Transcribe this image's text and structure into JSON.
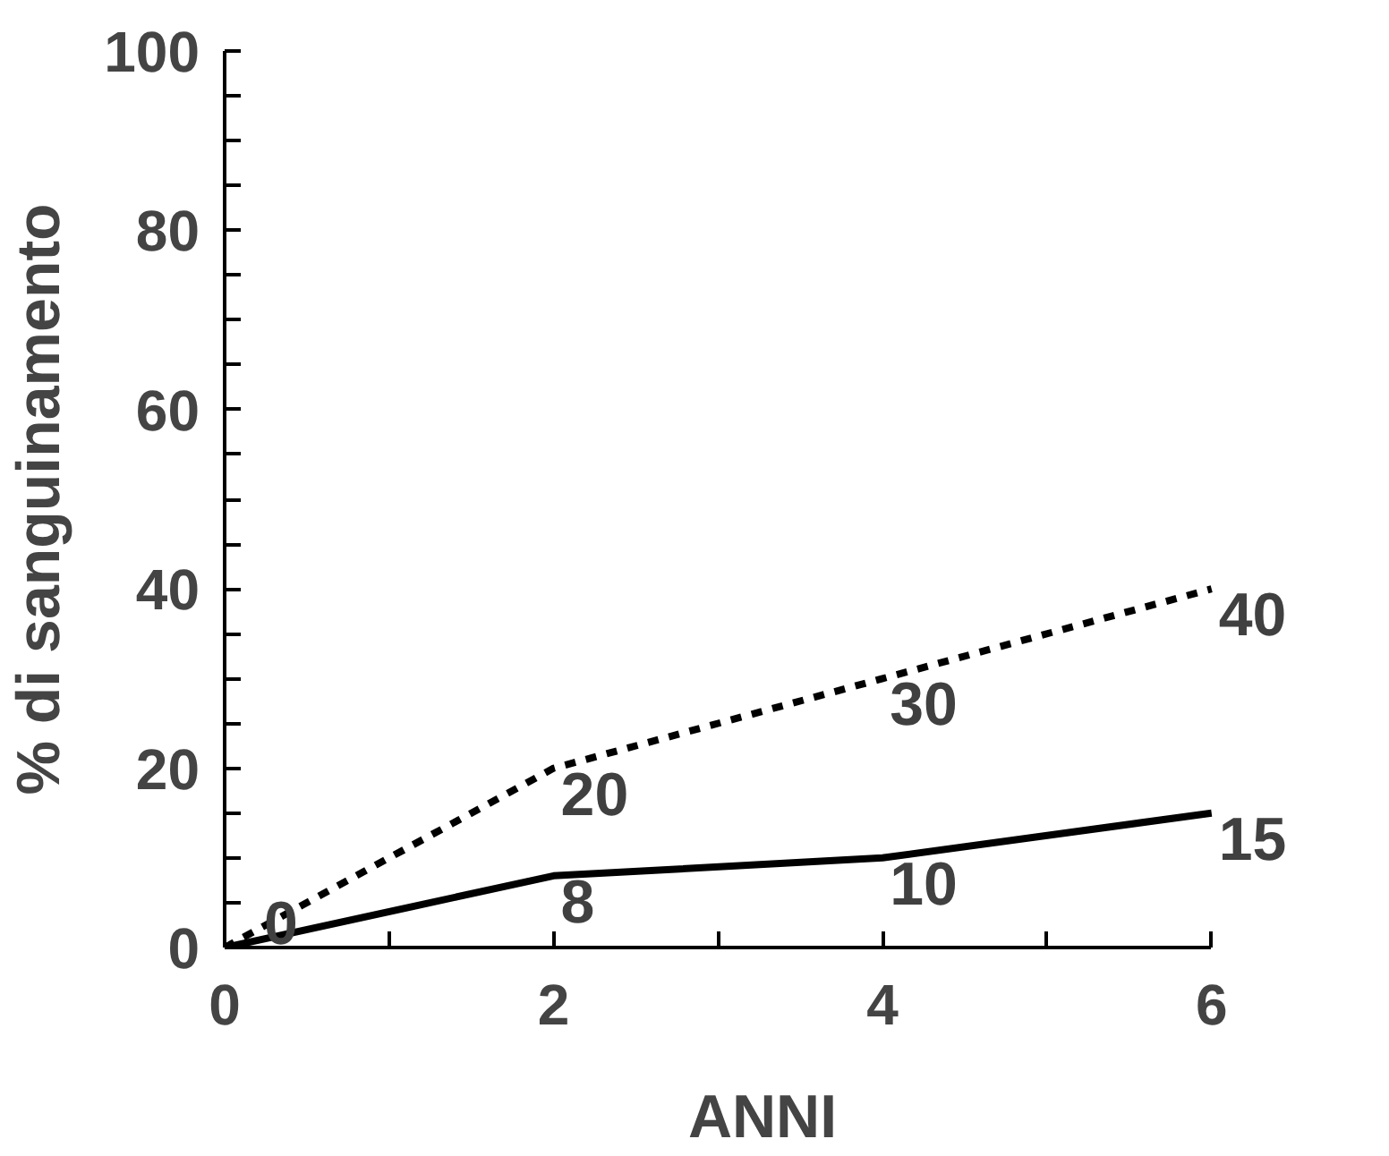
{
  "chart_data": {
    "type": "line",
    "xlabel": "ANNI",
    "ylabel": "% di sanguinamento",
    "x": [
      0,
      2,
      4,
      6
    ],
    "series": [
      {
        "color": "#000000",
        "line_style": "dashed",
        "values": [
          0,
          20,
          30,
          40
        ],
        "value_labels": [
          null,
          "20",
          "30",
          "40"
        ]
      },
      {
        "color": "#000000",
        "line_style": "solid",
        "values": [
          0,
          8,
          10,
          15
        ],
        "value_labels": [
          "0",
          "8",
          "10",
          "15"
        ]
      }
    ],
    "xlim": [
      0,
      6
    ],
    "ylim": [
      0,
      100
    ],
    "xticks": [
      0,
      {
        "value": 1,
        "label": null
      },
      2,
      {
        "value": 3,
        "label": null
      },
      4,
      {
        "value": 5,
        "label": null
      },
      6
    ],
    "yticks": [
      0,
      {
        "value": 5,
        "label": null
      },
      {
        "value": 10,
        "label": null
      },
      {
        "value": 15,
        "label": null
      },
      20,
      {
        "value": 25,
        "label": null
      },
      {
        "value": 30,
        "label": null
      },
      {
        "value": 35,
        "label": null
      },
      40,
      {
        "value": 45,
        "label": null
      },
      {
        "value": 50,
        "label": null
      },
      {
        "value": 55,
        "label": null
      },
      60,
      {
        "value": 65,
        "label": null
      },
      {
        "value": 70,
        "label": null
      },
      {
        "value": 75,
        "label": null
      },
      80,
      {
        "value": 85,
        "label": null
      },
      {
        "value": 90,
        "label": null
      },
      {
        "value": 95,
        "label": null
      },
      100
    ],
    "marker": "none"
  }
}
